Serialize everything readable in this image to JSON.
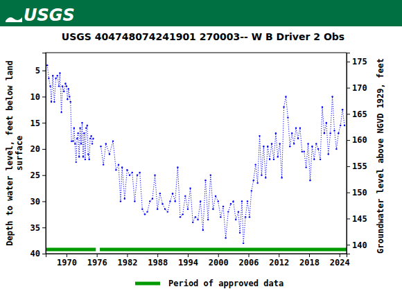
{
  "chart_data": {
    "type": "line",
    "header": "USGS",
    "title": "USGS 404748074241901 270003-- W B Driver 2 Obs",
    "ylabel": [
      "Depth to water level, feet below land",
      "surface"
    ],
    "y2label": "Groundwater level above NGVD 1929, feet",
    "x": [
      1966.2,
      1966.5,
      1966.8,
      1967.0,
      1967.3,
      1967.6,
      1967.9,
      1968.2,
      1968.5,
      1968.7,
      1969.0,
      1969.2,
      1969.5,
      1969.8,
      1970.0,
      1970.2,
      1970.4,
      1970.6,
      1970.8,
      1971.0,
      1971.3,
      1971.5,
      1971.7,
      1971.9,
      1972.1,
      1972.3,
      1972.5,
      1972.7,
      1972.9,
      1973.1,
      1973.3,
      1973.5,
      1973.7,
      1973.9,
      1974.1,
      1974.3,
      1974.5,
      1974.7,
      1974.9,
      1975.1,
      1975.3,
      1976.0,
      1976.8,
      1977.3,
      1977.8,
      1978.5,
      1979.2,
      1979.8,
      1980.3,
      1980.7,
      1981.0,
      1981.5,
      1982.0,
      1982.5,
      1983.0,
      1983.5,
      1984.0,
      1984.5,
      1985.0,
      1985.5,
      1986.0,
      1986.5,
      1987.0,
      1987.5,
      1988.0,
      1988.5,
      1989.0,
      1989.5,
      1990.0,
      1990.5,
      1991.0,
      1991.5,
      1992.0,
      1992.5,
      1993.0,
      1993.5,
      1994.0,
      1994.5,
      1995.0,
      1995.5,
      1996.0,
      1996.5,
      1997.0,
      1997.5,
      1998.0,
      1998.5,
      1999.0,
      1999.5,
      2000.0,
      2000.5,
      2001.0,
      2001.5,
      2002.0,
      2002.5,
      2003.0,
      2003.5,
      2004.0,
      2004.3,
      2004.7,
      2005.0,
      2005.4,
      2005.8,
      2006.2,
      2006.6,
      2007.0,
      2007.4,
      2007.8,
      2008.2,
      2008.6,
      2009.0,
      2009.4,
      2009.8,
      2010.2,
      2010.6,
      2011.0,
      2011.4,
      2011.8,
      2012.2,
      2012.6,
      2013.0,
      2013.4,
      2013.8,
      2014.2,
      2014.6,
      2015.0,
      2015.4,
      2015.8,
      2016.2,
      2016.6,
      2017.0,
      2017.4,
      2017.8,
      2018.2,
      2018.6,
      2019.0,
      2019.4,
      2019.8,
      2020.2,
      2020.6,
      2021.0,
      2021.4,
      2021.8,
      2022.2,
      2022.6,
      2023.0,
      2023.4,
      2023.8,
      2024.2,
      2024.6,
      2025.0
    ],
    "series": [
      {
        "color": "#0000ff",
        "marker": "point",
        "line_style": "dotted",
        "values": [
          4,
          6.5,
          8,
          11,
          6,
          11,
          6.5,
          6,
          8,
          5.5,
          13,
          8,
          9,
          7.5,
          8,
          10.5,
          8.5,
          10,
          11,
          18.5,
          18.5,
          16,
          19,
          22.5,
          18,
          17,
          21.5,
          16,
          19,
          15,
          21.5,
          17,
          22,
          16,
          15.5,
          21,
          22,
          18,
          17.5,
          19,
          18,
          null,
          19.5,
          23,
          19,
          21,
          18.5,
          24,
          23,
          30,
          23.5,
          29.5,
          24,
          25,
          24.5,
          30,
          25,
          24.5,
          31.5,
          32.5,
          32,
          30,
          29.5,
          25,
          31.5,
          28.5,
          30.5,
          31.5,
          32,
          30,
          28.5,
          30,
          23.5,
          33,
          32.5,
          29,
          31.5,
          27.5,
          34,
          33,
          33.5,
          30,
          35.5,
          26,
          33.5,
          25,
          31.5,
          29,
          30,
          33,
          31,
          37,
          32,
          30.5,
          30,
          33.5,
          32,
          36,
          30,
          38,
          33,
          30,
          33,
          28,
          26,
          23,
          26.5,
          17.5,
          25,
          19.5,
          25.5,
          19.5,
          22,
          19,
          22,
          17,
          21.5,
          19,
          25.5,
          12,
          10,
          14,
          19.5,
          17,
          19,
          16,
          18,
          16,
          20.5,
          20.5,
          23.5,
          19,
          26,
          19.5,
          22,
          19,
          20,
          22,
          12,
          17,
          15,
          21,
          17,
          10,
          16.5,
          20,
          17,
          15.5,
          12.5,
          15.5
        ]
      }
    ],
    "xlim": [
      1965.9,
      2025.4
    ],
    "xticks": [
      1970,
      1976,
      1982,
      1988,
      1994,
      2000,
      2006,
      2012,
      2018,
      2024
    ],
    "ylim": [
      1.6,
      40
    ],
    "yticks": [
      5,
      10,
      15,
      20,
      25,
      30,
      35,
      40
    ],
    "y2lim": [
      176.7,
      138.3
    ],
    "y2ticks": [
      140,
      145,
      150,
      155,
      160,
      165,
      170,
      175
    ],
    "approved_periods": [
      [
        1966.0,
        1975.8
      ],
      [
        1976.6,
        2025.4
      ]
    ],
    "approved_color": "#009900",
    "approved_label": "Period of approved data",
    "grid": false
  }
}
